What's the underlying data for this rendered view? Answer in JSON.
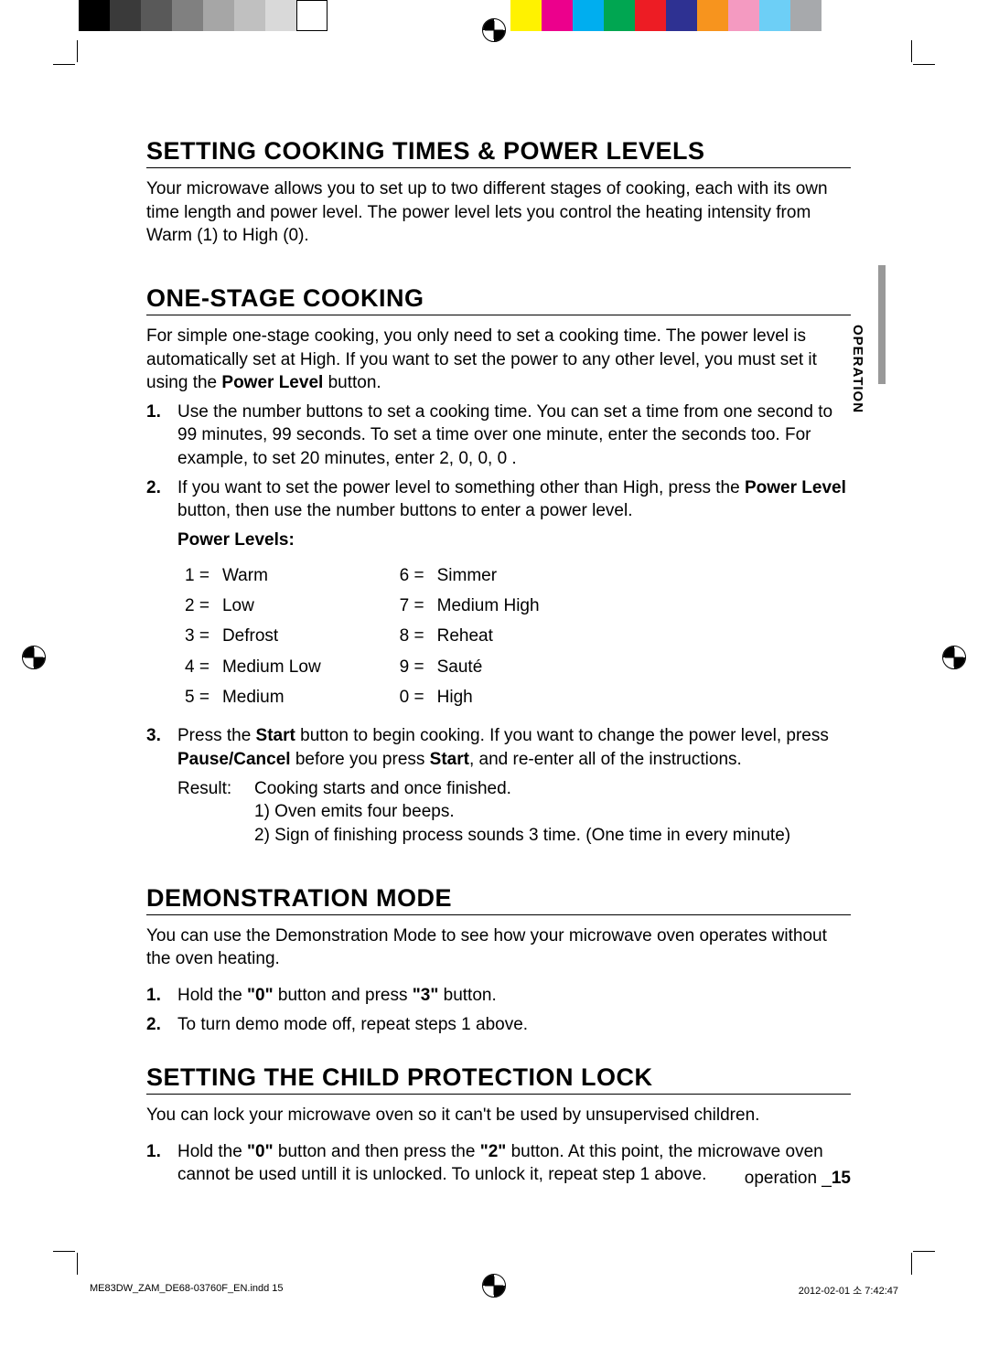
{
  "color_bar": {
    "left_block_width": 86,
    "grays": [
      "#000000",
      "#3a3a3a",
      "#595959",
      "#808080",
      "#a6a6a6",
      "#c0c0c0",
      "#d9d9d9",
      "#ffffff"
    ],
    "gray_swatch_width": 34,
    "colors": [
      "#fff200",
      "#ec008c",
      "#00aeef",
      "#00a651",
      "#ed1c24",
      "#2e3192",
      "#f7941e",
      "#f49ac1",
      "#6dcff6",
      "#a7a9ac"
    ],
    "color_swatch_width": 34,
    "gap_width": 200
  },
  "side_tab": "OPERATION",
  "sections": {
    "setting_cooking": {
      "title": "SETTING COOKING TIMES & POWER LEVELS",
      "body": "Your microwave allows you to set up to two different stages of cooking, each with its own time length and power level. The power level lets you control the heating intensity from Warm (1) to High (0)."
    },
    "one_stage": {
      "title": "ONE-STAGE COOKING",
      "body_pre": "For simple one-stage cooking, you only need to set a cooking time. The power level is automatically set at High. If you want to set the power to any other level, you must set it using the ",
      "body_bold": "Power Level",
      "body_post": " button.",
      "step1": "Use the number buttons to set a cooking time. You can set a time from one second to 99 minutes, 99 seconds. To set a time over one minute, enter the seconds too. For example, to set 20 minutes, enter 2, 0, 0, 0 .",
      "step2_pre": "If you want to set the power level to something other than High, press the ",
      "step2_bold": "Power Level",
      "step2_post": " button, then use the number buttons to enter a power level.",
      "power_levels_label": "Power Levels:",
      "power_levels_left": [
        [
          "1",
          "Warm"
        ],
        [
          "2",
          "Low"
        ],
        [
          "3",
          "Defrost"
        ],
        [
          "4",
          "Medium Low"
        ],
        [
          "5",
          "Medium"
        ]
      ],
      "power_levels_right": [
        [
          "6",
          "Simmer"
        ],
        [
          "7",
          "Medium High"
        ],
        [
          "8",
          "Reheat"
        ],
        [
          "9",
          "Sauté"
        ],
        [
          "0",
          "High"
        ]
      ],
      "step3_a": "Press the ",
      "step3_b": "Start",
      "step3_c": " button to begin cooking. If you want to change the power level, press ",
      "step3_d": "Pause/Cancel",
      "step3_e": " before you press ",
      "step3_f": "Start",
      "step3_g": ", and re-enter all of the instructions.",
      "result_label": "Result:",
      "result_l1": "Cooking starts and once finished.",
      "result_l2": "1) Oven emits four beeps.",
      "result_l3": "2) Sign of finishing process sounds 3 time. (One time in every minute)"
    },
    "demo": {
      "title": "DEMONSTRATION MODE",
      "body": "You can use the Demonstration Mode to see how your microwave oven operates without the oven heating.",
      "step1_a": "Hold the ",
      "step1_b": "\"0\"",
      "step1_c": " button and press ",
      "step1_d": "\"3\"",
      "step1_e": " button.",
      "step2": "To turn demo mode off, repeat steps 1 above."
    },
    "child_lock": {
      "title": "SETTING THE CHILD PROTECTION LOCK",
      "body": "You can lock your microwave oven so it can't be used by unsupervised children.",
      "step1_a": "Hold the ",
      "step1_b": "\"0\"",
      "step1_c": " button and then press the ",
      "step1_d": "\"2\"",
      "step1_e": " button. At this point, the microwave oven cannot be used untill it is unlocked. To unlock it, repeat step 1 above."
    }
  },
  "footer_operation_label": "operation _",
  "footer_page_num": "15",
  "print_footer_left": "ME83DW_ZAM_DE68-03760F_EN.indd   15",
  "print_footer_right": "2012-02-01   소 7:42:47"
}
